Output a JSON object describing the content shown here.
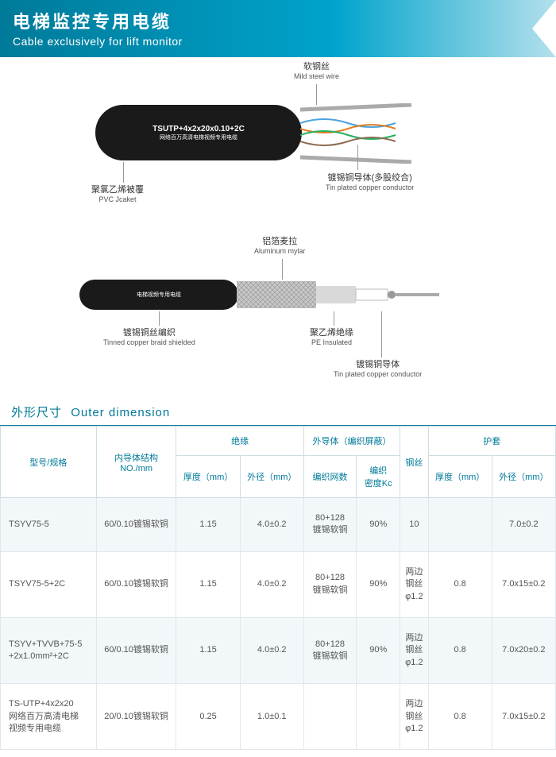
{
  "header": {
    "titleCn": "电梯监控专用电缆",
    "titleEn": "Cable exclusively for lift monitor"
  },
  "diagram": {
    "cable1": {
      "textLine1": "TSUTP+4x2x20x0.10+2C",
      "textLine2": "网络百万高清电梯视频专用电缆",
      "bodyColor": "#1a1a1a",
      "labels": {
        "steelWire": {
          "cn": "软钢丝",
          "en": "Mild steel wire"
        },
        "tinCopper": {
          "cn": "镀锡铜导体(多股绞合)",
          "en": "Tin plated copper conductor"
        },
        "pvc": {
          "cn": "聚氯乙烯被覆",
          "en": "PVC Jcaket"
        }
      }
    },
    "cable2": {
      "text": "电梯视频专用电缆",
      "bodyColor": "#1a1a1a",
      "labels": {
        "mylar": {
          "cn": "铝箔麦拉",
          "en": "Aluminum mylar"
        },
        "braid": {
          "cn": "镀锡铜丝编织",
          "en": "Tinned copper braid shielded"
        },
        "pe": {
          "cn": "聚乙烯绝缘",
          "en": "PE Insulated"
        },
        "tinCopper2": {
          "cn": "镀锡铜导体",
          "en": "Tin plated copper conductor"
        }
      }
    }
  },
  "tableSection": {
    "titleCn": "外形尺寸",
    "titleEn": "Outer dimension",
    "headerRow1": {
      "model": "型号/规格",
      "conductor": "内导体结构\nNO./mm",
      "insulation": "绝缘",
      "outerConductor": "外导体（编织屏蔽）",
      "steel": "钢丝",
      "sheath": "护套"
    },
    "headerRow2": {
      "insThick": "厚度（mm）",
      "insDia": "外径（mm）",
      "braidCount": "编织网数",
      "braidDensity": "编织\n密度Kc",
      "sheathThick": "厚度（mm）",
      "sheathDia": "外径（mm）"
    },
    "rows": [
      {
        "model": "TSYV75-5",
        "conductor": "60/0.10镀锡软铜",
        "insThick": "1.15",
        "insDia": "4.0±0.2",
        "braidCount": "80+128\n镀锡软铜",
        "braidDensity": "90%",
        "steel": "10",
        "sheathThick": "",
        "sheathDia": "7.0±0.2"
      },
      {
        "model": "TSYV75-5+2C",
        "conductor": "60/0.10镀锡软铜",
        "insThick": "1.15",
        "insDia": "4.0±0.2",
        "braidCount": "80+128\n镀锡软铜",
        "braidDensity": "90%",
        "steel": "两边\n钢丝\nφ1.2",
        "sheathThick": "0.8",
        "sheathDia": "7.0x15±0.2"
      },
      {
        "model": "TSYV+TVVB+75-5\n+2x1.0mm²+2C",
        "conductor": "60/0.10镀锡软铜",
        "insThick": "1.15",
        "insDia": "4.0±0.2",
        "braidCount": "80+128\n镀锡软铜",
        "braidDensity": "90%",
        "steel": "两边\n钢丝\nφ1.2",
        "sheathThick": "0.8",
        "sheathDia": "7.0x20±0.2"
      },
      {
        "model": "TS-UTP+4x2x20\n网络百万高清电梯\n视频专用电缆",
        "conductor": "20/0.10镀锡软铜",
        "insThick": "0.25",
        "insDia": "1.0±0.1",
        "braidCount": "",
        "braidDensity": "",
        "steel": "两边\n钢丝\nφ1.2",
        "sheathThick": "0.8",
        "sheathDia": "7.0x15±0.2"
      }
    ]
  },
  "colors": {
    "headerGradientStart": "#007a99",
    "headerGradientEnd": "#b3e0ec",
    "accent": "#007a99",
    "rowAlt": "#f2f7f9",
    "border": "#cfdde3"
  }
}
